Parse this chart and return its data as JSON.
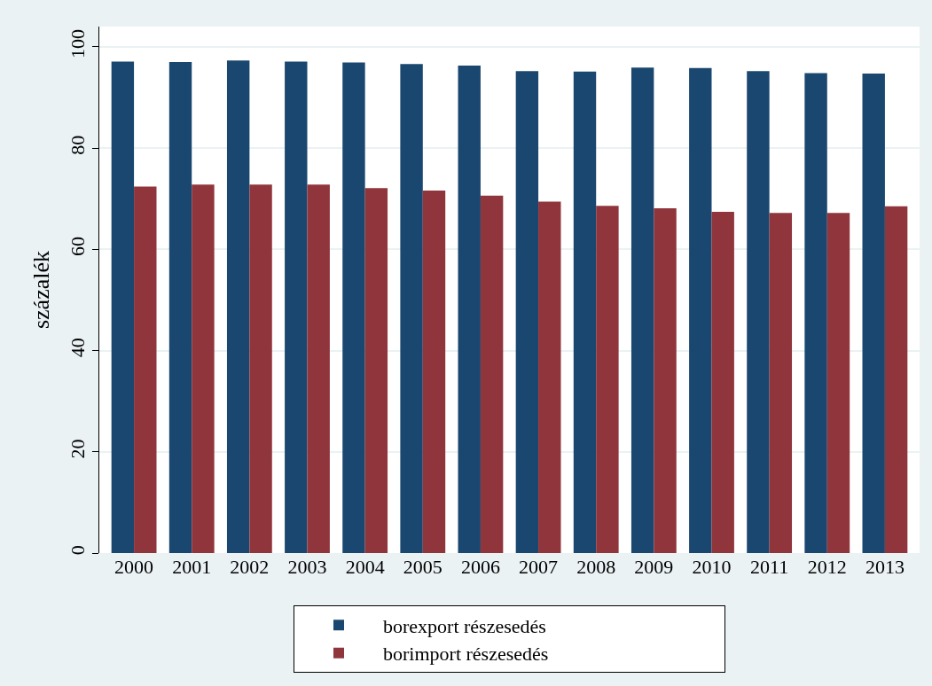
{
  "chart_data": {
    "type": "bar",
    "ylabel": "százalék",
    "categories": [
      "2000",
      "2001",
      "2002",
      "2003",
      "2004",
      "2005",
      "2006",
      "2007",
      "2008",
      "2009",
      "2010",
      "2011",
      "2012",
      "2013"
    ],
    "series": [
      {
        "name": "borexport részesedés",
        "color": "#1a476f",
        "values": [
          97.1,
          97.0,
          97.3,
          97.1,
          96.9,
          96.6,
          96.3,
          95.2,
          95.1,
          95.9,
          95.8,
          95.2,
          94.8,
          94.7
        ]
      },
      {
        "name": "borimport részesedés",
        "color": "#90353b",
        "values": [
          72.4,
          72.8,
          72.8,
          72.8,
          72.1,
          71.6,
          70.6,
          69.4,
          68.6,
          68.1,
          67.4,
          67.2,
          67.2,
          68.5
        ]
      }
    ],
    "ylim": [
      0,
      104
    ],
    "yticks": [
      0,
      20,
      40,
      60,
      80,
      100
    ],
    "grid": "y",
    "legend": "bottom"
  }
}
